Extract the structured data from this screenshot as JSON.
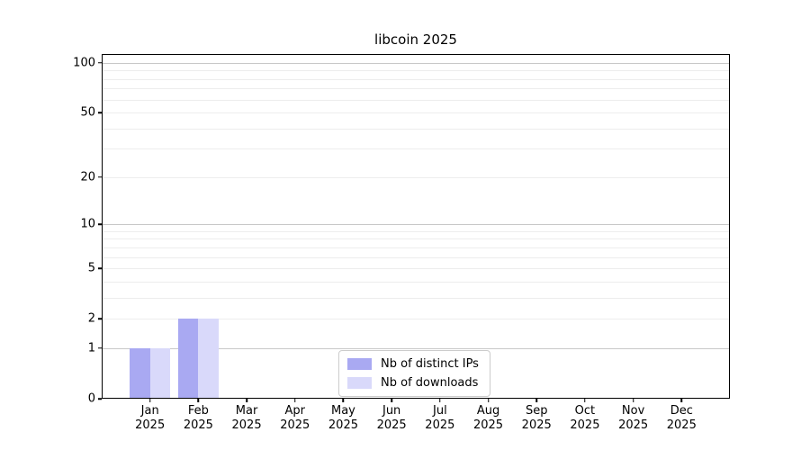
{
  "chart_data": {
    "type": "bar",
    "title": "libcoin 2025",
    "categories": [
      "Jan 2025",
      "Feb 2025",
      "Mar 2025",
      "Apr 2025",
      "May 2025",
      "Jun 2025",
      "Jul 2025",
      "Aug 2025",
      "Sep 2025",
      "Oct 2025",
      "Nov 2025",
      "Dec 2025"
    ],
    "series": [
      {
        "name": "Nb of distinct IPs",
        "color": "#a9a9f2",
        "values": [
          1,
          2,
          0,
          0,
          0,
          0,
          0,
          0,
          0,
          0,
          0,
          0
        ]
      },
      {
        "name": "Nb of downloads",
        "color": "#d9d9fa",
        "values": [
          1,
          2,
          0,
          0,
          0,
          0,
          0,
          0,
          0,
          0,
          0,
          0
        ]
      }
    ],
    "xlabel": "",
    "ylabel": "",
    "yticks": [
      0,
      1,
      2,
      5,
      10,
      20,
      50,
      100
    ],
    "major_gridlines": [
      1,
      10,
      100
    ],
    "minor_gridlines": [
      2,
      3,
      4,
      5,
      6,
      7,
      8,
      9,
      20,
      30,
      40,
      50,
      60,
      70,
      80,
      90
    ],
    "scale": "log1p",
    "ylim": [
      0,
      113
    ],
    "grid": true,
    "legend_position": "inside lower center"
  }
}
